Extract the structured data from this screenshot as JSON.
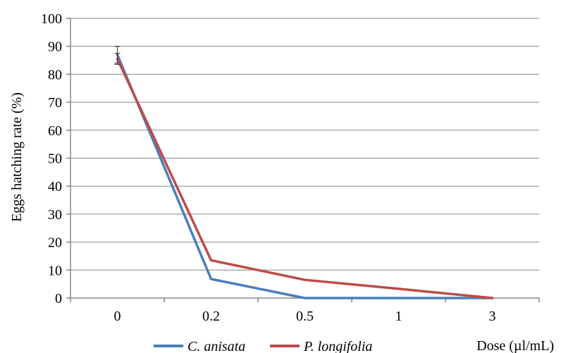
{
  "chart_data": {
    "type": "line",
    "categories": [
      "0",
      "0.2",
      "0.5",
      "1",
      "3"
    ],
    "ylabel": "Eggs hatching rate (%)",
    "xlabel": "Dose (µl/mL)",
    "ylim": [
      0,
      100
    ],
    "yticks": [
      0,
      10,
      20,
      30,
      40,
      50,
      60,
      70,
      80,
      90,
      100
    ],
    "grid": "horizontal",
    "legend_position": "bottom",
    "series": [
      {
        "name": "C. anisata",
        "color": "#4a7ebb",
        "values": [
          87,
          6.8,
          0,
          0,
          0
        ],
        "error": [
          3,
          0,
          0,
          0,
          0
        ]
      },
      {
        "name": "P. longifolia",
        "color": "#be4b48",
        "values": [
          85.5,
          13.5,
          6.5,
          3.3,
          0
        ],
        "error": [
          2,
          0,
          0,
          0,
          0
        ]
      }
    ]
  }
}
